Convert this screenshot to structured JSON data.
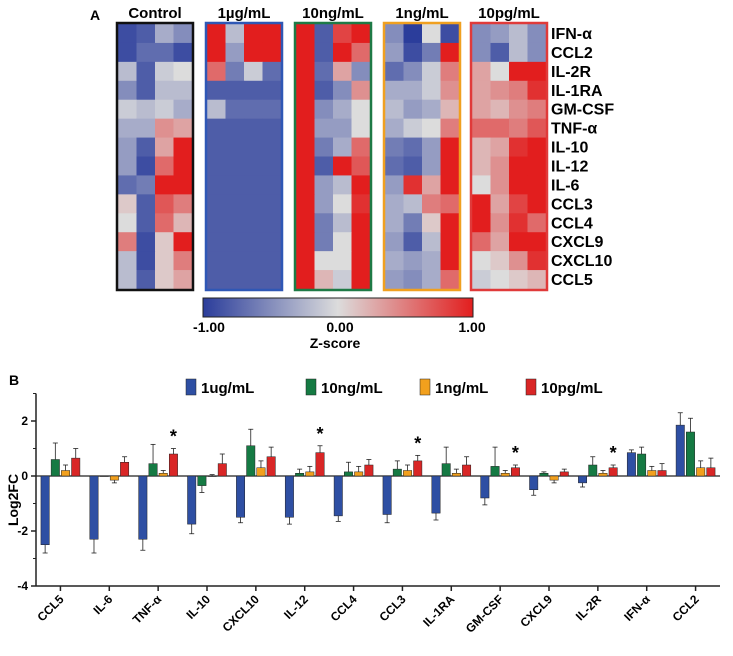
{
  "chart_data": [
    {
      "type": "heatmap",
      "panel_label": "A",
      "groups": [
        {
          "name": "Control",
          "border_color": "#111111"
        },
        {
          "name": "1µg/mL",
          "border_color": "#2f57b5"
        },
        {
          "name": "10ng/mL",
          "border_color": "#1e7a46"
        },
        {
          "name": "1ng/mL",
          "border_color": "#f0a020"
        },
        {
          "name": "10pg/mL",
          "border_color": "#e03a3a"
        }
      ],
      "rows": [
        "IFN-α",
        "CCL2",
        "IL-2R",
        "IL-1RA",
        "GM-CSF",
        "TNF-α",
        "IL-10",
        "IL-12",
        "IL-6",
        "CCL3",
        "CCL4",
        "CXCL9",
        "CXCL10",
        "CCL5"
      ],
      "replicates_per_group": 4,
      "values": [
        [
          [
            -0.9,
            -0.8,
            -0.3,
            -0.5
          ],
          [
            1.0,
            -0.2,
            1.0,
            1.0
          ],
          [
            1.0,
            -0.8,
            0.8,
            1.0
          ],
          [
            -0.5,
            -1.0,
            0.0,
            -0.9
          ],
          [
            -0.5,
            -0.4,
            -0.2,
            -0.5
          ]
        ],
        [
          [
            -0.9,
            -0.7,
            -0.7,
            -0.9
          ],
          [
            1.0,
            -0.4,
            1.0,
            1.0
          ],
          [
            1.0,
            -0.8,
            1.0,
            0.6
          ],
          [
            -0.4,
            -0.9,
            -0.6,
            1.0
          ],
          [
            -0.5,
            -0.8,
            -0.2,
            -0.5
          ]
        ],
        [
          [
            -0.2,
            -0.8,
            -0.1,
            0.0
          ],
          [
            0.6,
            -0.6,
            -0.1,
            -0.7
          ],
          [
            1.0,
            -0.7,
            0.3,
            -0.5
          ],
          [
            -0.7,
            -0.5,
            -0.1,
            0.5
          ],
          [
            0.3,
            0.0,
            1.0,
            1.0
          ]
        ],
        [
          [
            -0.5,
            -0.8,
            -0.2,
            -0.2
          ],
          [
            -0.8,
            -0.8,
            -0.8,
            -0.8
          ],
          [
            1.0,
            -0.8,
            -0.5,
            0.4
          ],
          [
            -0.3,
            -0.3,
            -0.1,
            0.4
          ],
          [
            0.3,
            0.4,
            0.5,
            0.9
          ]
        ],
        [
          [
            -0.1,
            -0.2,
            -0.1,
            -0.3
          ],
          [
            -0.2,
            -0.7,
            -0.7,
            -0.7
          ],
          [
            1.0,
            -0.5,
            -0.3,
            0.0
          ],
          [
            -0.2,
            -0.4,
            -0.3,
            0.2
          ],
          [
            0.3,
            0.2,
            0.4,
            0.5
          ]
        ],
        [
          [
            -0.3,
            -0.3,
            0.4,
            0.3
          ],
          [
            -0.8,
            -0.8,
            -0.8,
            -0.8
          ],
          [
            1.0,
            -0.4,
            -0.4,
            0.0
          ],
          [
            -0.3,
            -0.1,
            0.0,
            0.5
          ],
          [
            0.6,
            0.6,
            0.5,
            0.7
          ]
        ],
        [
          [
            -0.4,
            -0.8,
            0.3,
            1.0
          ],
          [
            -0.8,
            -0.8,
            -0.8,
            -0.8
          ],
          [
            1.0,
            -0.6,
            -0.3,
            0.6
          ],
          [
            -0.6,
            -0.7,
            -0.4,
            1.0
          ],
          [
            0.2,
            0.3,
            0.9,
            1.0
          ]
        ],
        [
          [
            -0.4,
            -0.9,
            0.6,
            1.0
          ],
          [
            -0.8,
            -0.8,
            -0.8,
            -0.8
          ],
          [
            1.0,
            -0.8,
            1.0,
            0.7
          ],
          [
            -0.7,
            -0.8,
            -0.4,
            1.0
          ],
          [
            0.2,
            0.4,
            1.0,
            1.0
          ]
        ],
        [
          [
            -0.7,
            -0.6,
            1.0,
            1.0
          ],
          [
            -0.8,
            -0.8,
            -0.8,
            -0.8
          ],
          [
            1.0,
            -0.4,
            -0.2,
            1.0
          ],
          [
            -0.4,
            0.9,
            0.3,
            1.0
          ],
          [
            0.0,
            0.4,
            1.0,
            1.0
          ]
        ],
        [
          [
            0.1,
            -0.8,
            0.7,
            0.5
          ],
          [
            -0.8,
            -0.8,
            -0.8,
            -0.8
          ],
          [
            1.0,
            -0.4,
            0.0,
            0.9
          ],
          [
            -0.3,
            -0.2,
            0.5,
            0.6
          ],
          [
            1.0,
            0.3,
            0.8,
            1.0
          ]
        ],
        [
          [
            0.0,
            -0.8,
            0.6,
            0.2
          ],
          [
            -0.8,
            -0.8,
            -0.8,
            -0.8
          ],
          [
            1.0,
            -0.6,
            -0.2,
            1.0
          ],
          [
            -0.3,
            -0.6,
            0.1,
            1.0
          ],
          [
            1.0,
            0.4,
            0.9,
            0.6
          ]
        ],
        [
          [
            0.5,
            -0.9,
            0.1,
            1.0
          ],
          [
            -0.8,
            -0.8,
            -0.8,
            -0.8
          ],
          [
            1.0,
            -0.6,
            0.0,
            1.0
          ],
          [
            -0.4,
            -0.8,
            -0.2,
            1.0
          ],
          [
            0.6,
            0.3,
            1.0,
            1.0
          ]
        ],
        [
          [
            -0.2,
            -0.9,
            0.1,
            0.5
          ],
          [
            -0.8,
            -0.8,
            -0.8,
            -0.8
          ],
          [
            1.0,
            0.0,
            0.0,
            1.0
          ],
          [
            -0.3,
            -0.4,
            -0.3,
            1.0
          ],
          [
            0.0,
            0.1,
            0.4,
            0.9
          ]
        ],
        [
          [
            -0.2,
            -0.8,
            0.1,
            0.3
          ],
          [
            -0.8,
            -0.8,
            -0.8,
            -0.8
          ],
          [
            1.0,
            0.2,
            -0.1,
            1.0
          ],
          [
            -0.4,
            -0.5,
            -0.3,
            0.6
          ],
          [
            -0.1,
            0.0,
            0.1,
            0.2
          ]
        ]
      ],
      "colorbar": {
        "min": -1.0,
        "mid": 0.0,
        "max": 1.0,
        "tick_labels": [
          "-1.00",
          "0.00",
          "1.00"
        ],
        "label": "Z-score",
        "low_color": "#2b3d9b",
        "mid_color": "#dcdcdc",
        "high_color": "#e21e1e"
      }
    },
    {
      "type": "bar",
      "panel_label": "B",
      "categories": [
        "CCL5",
        "IL-6",
        "TNF-α",
        "IL-10",
        "CXCL10",
        "IL-12",
        "CCL4",
        "CCL3",
        "IL-1RA",
        "GM-CSF",
        "CXCL9",
        "IL-2R",
        "IFN-α",
        "CCL2"
      ],
      "series": [
        {
          "name": "1ug/mL",
          "color": "#2e4fa3",
          "values": [
            -2.5,
            -2.3,
            -2.3,
            -1.75,
            -1.5,
            -1.5,
            -1.45,
            -1.4,
            -1.35,
            -0.8,
            -0.5,
            -0.25,
            0.85,
            1.85
          ],
          "errors": [
            0.3,
            0.5,
            0.4,
            0.35,
            0.2,
            0.25,
            0.2,
            0.3,
            0.25,
            0.25,
            0.2,
            0.15,
            0.1,
            0.45
          ]
        },
        {
          "name": "10ng/mL",
          "color": "#157a43",
          "values": [
            0.6,
            0.0,
            0.45,
            -0.35,
            1.1,
            0.1,
            0.15,
            0.25,
            0.45,
            0.35,
            0.1,
            0.4,
            0.8,
            1.6
          ],
          "errors": [
            0.6,
            0.0,
            0.7,
            0.25,
            0.6,
            0.15,
            0.35,
            0.3,
            0.6,
            0.7,
            0.05,
            0.3,
            0.25,
            0.5
          ]
        },
        {
          "name": "1ng/mL",
          "color": "#f2a01d",
          "values": [
            0.2,
            -0.15,
            0.1,
            0.0,
            0.3,
            0.15,
            0.15,
            0.2,
            0.1,
            0.1,
            -0.15,
            0.1,
            0.2,
            0.3
          ],
          "errors": [
            0.2,
            0.1,
            0.1,
            0.05,
            0.25,
            0.2,
            0.2,
            0.2,
            0.15,
            0.1,
            0.1,
            0.1,
            0.15,
            0.25
          ]
        },
        {
          "name": "10pg/mL",
          "color": "#d92626",
          "values": [
            0.65,
            0.5,
            0.8,
            0.45,
            0.7,
            0.85,
            0.4,
            0.55,
            0.4,
            0.3,
            0.15,
            0.3,
            0.2,
            0.3
          ],
          "errors": [
            0.35,
            0.2,
            0.2,
            0.35,
            0.35,
            0.25,
            0.2,
            0.2,
            0.3,
            0.1,
            0.1,
            0.1,
            0.25,
            0.35
          ]
        }
      ],
      "significance": [
        {
          "category": "TNF-α",
          "label": "*"
        },
        {
          "category": "IL-12",
          "label": "*"
        },
        {
          "category": "CCL3",
          "label": "*"
        },
        {
          "category": "GM-CSF",
          "label": "*"
        },
        {
          "category": "IL-2R",
          "label": "*"
        }
      ],
      "ylabel": "Log2FC",
      "xlabel": "",
      "ylim": [
        -4,
        3
      ],
      "yticks": [
        -4,
        -2,
        0,
        2
      ],
      "legend_position": "top"
    }
  ]
}
